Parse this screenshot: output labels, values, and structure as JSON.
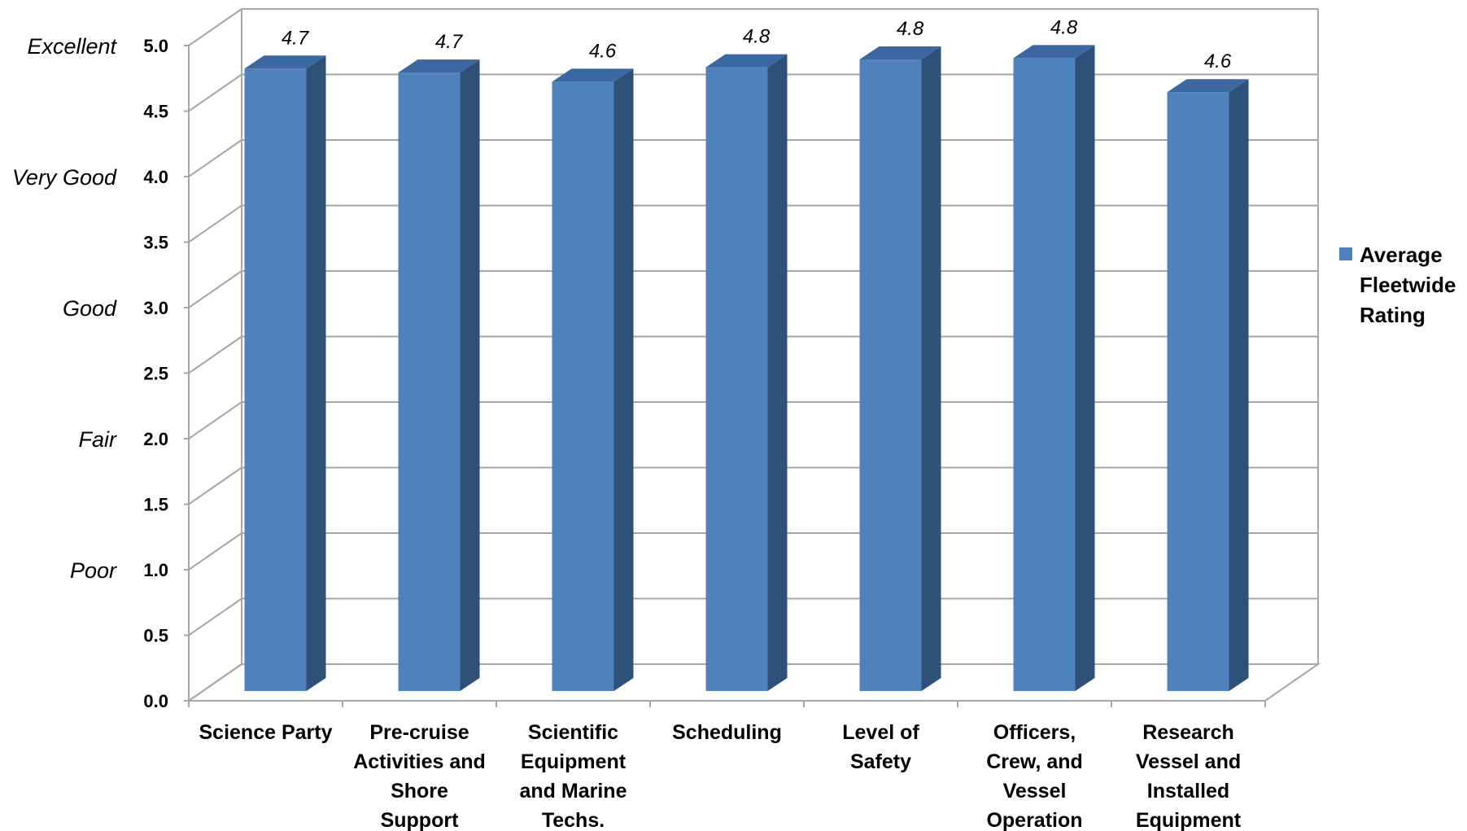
{
  "chart_data": {
    "type": "bar",
    "categories": [
      [
        "Science Party"
      ],
      [
        "Pre-cruise",
        "Activities and",
        "Shore",
        "Support"
      ],
      [
        "Scientific",
        "Equipment",
        "and Marine",
        "Techs."
      ],
      [
        "Scheduling"
      ],
      [
        "Level of",
        "Safety"
      ],
      [
        "Officers,",
        "Crew, and",
        "Vessel",
        "Operation"
      ],
      [
        "Research",
        "Vessel and",
        "Installed",
        "Equipment"
      ]
    ],
    "series": [
      {
        "name": "Average Fleetwide Rating",
        "legend_lines": [
          "Average",
          "Fleetwide",
          "Rating"
        ],
        "values": [
          4.75,
          4.72,
          4.65,
          4.76,
          4.82,
          4.83,
          4.57
        ],
        "data_labels": [
          "4.7",
          "4.7",
          "4.6",
          "4.8",
          "4.8",
          "4.8",
          "4.6"
        ],
        "color": "#4F81BD",
        "side_color": "#2F5079",
        "top_color": "#3B68A0"
      }
    ],
    "ylim": [
      0,
      5
    ],
    "y_ticks": [
      "0.0",
      "0.5",
      "1.0",
      "1.5",
      "2.0",
      "2.5",
      "3.0",
      "3.5",
      "4.0",
      "4.5",
      "5.0"
    ],
    "y_qualitative": [
      {
        "label": "Excellent",
        "value": 5.0
      },
      {
        "label": "Very Good",
        "value": 4.0
      },
      {
        "label": "Good",
        "value": 3.0
      },
      {
        "label": "Fair",
        "value": 2.0
      },
      {
        "label": "Poor",
        "value": 1.0
      }
    ],
    "grid": true,
    "legend_position": "right",
    "title": "",
    "xlabel": "",
    "ylabel": ""
  }
}
